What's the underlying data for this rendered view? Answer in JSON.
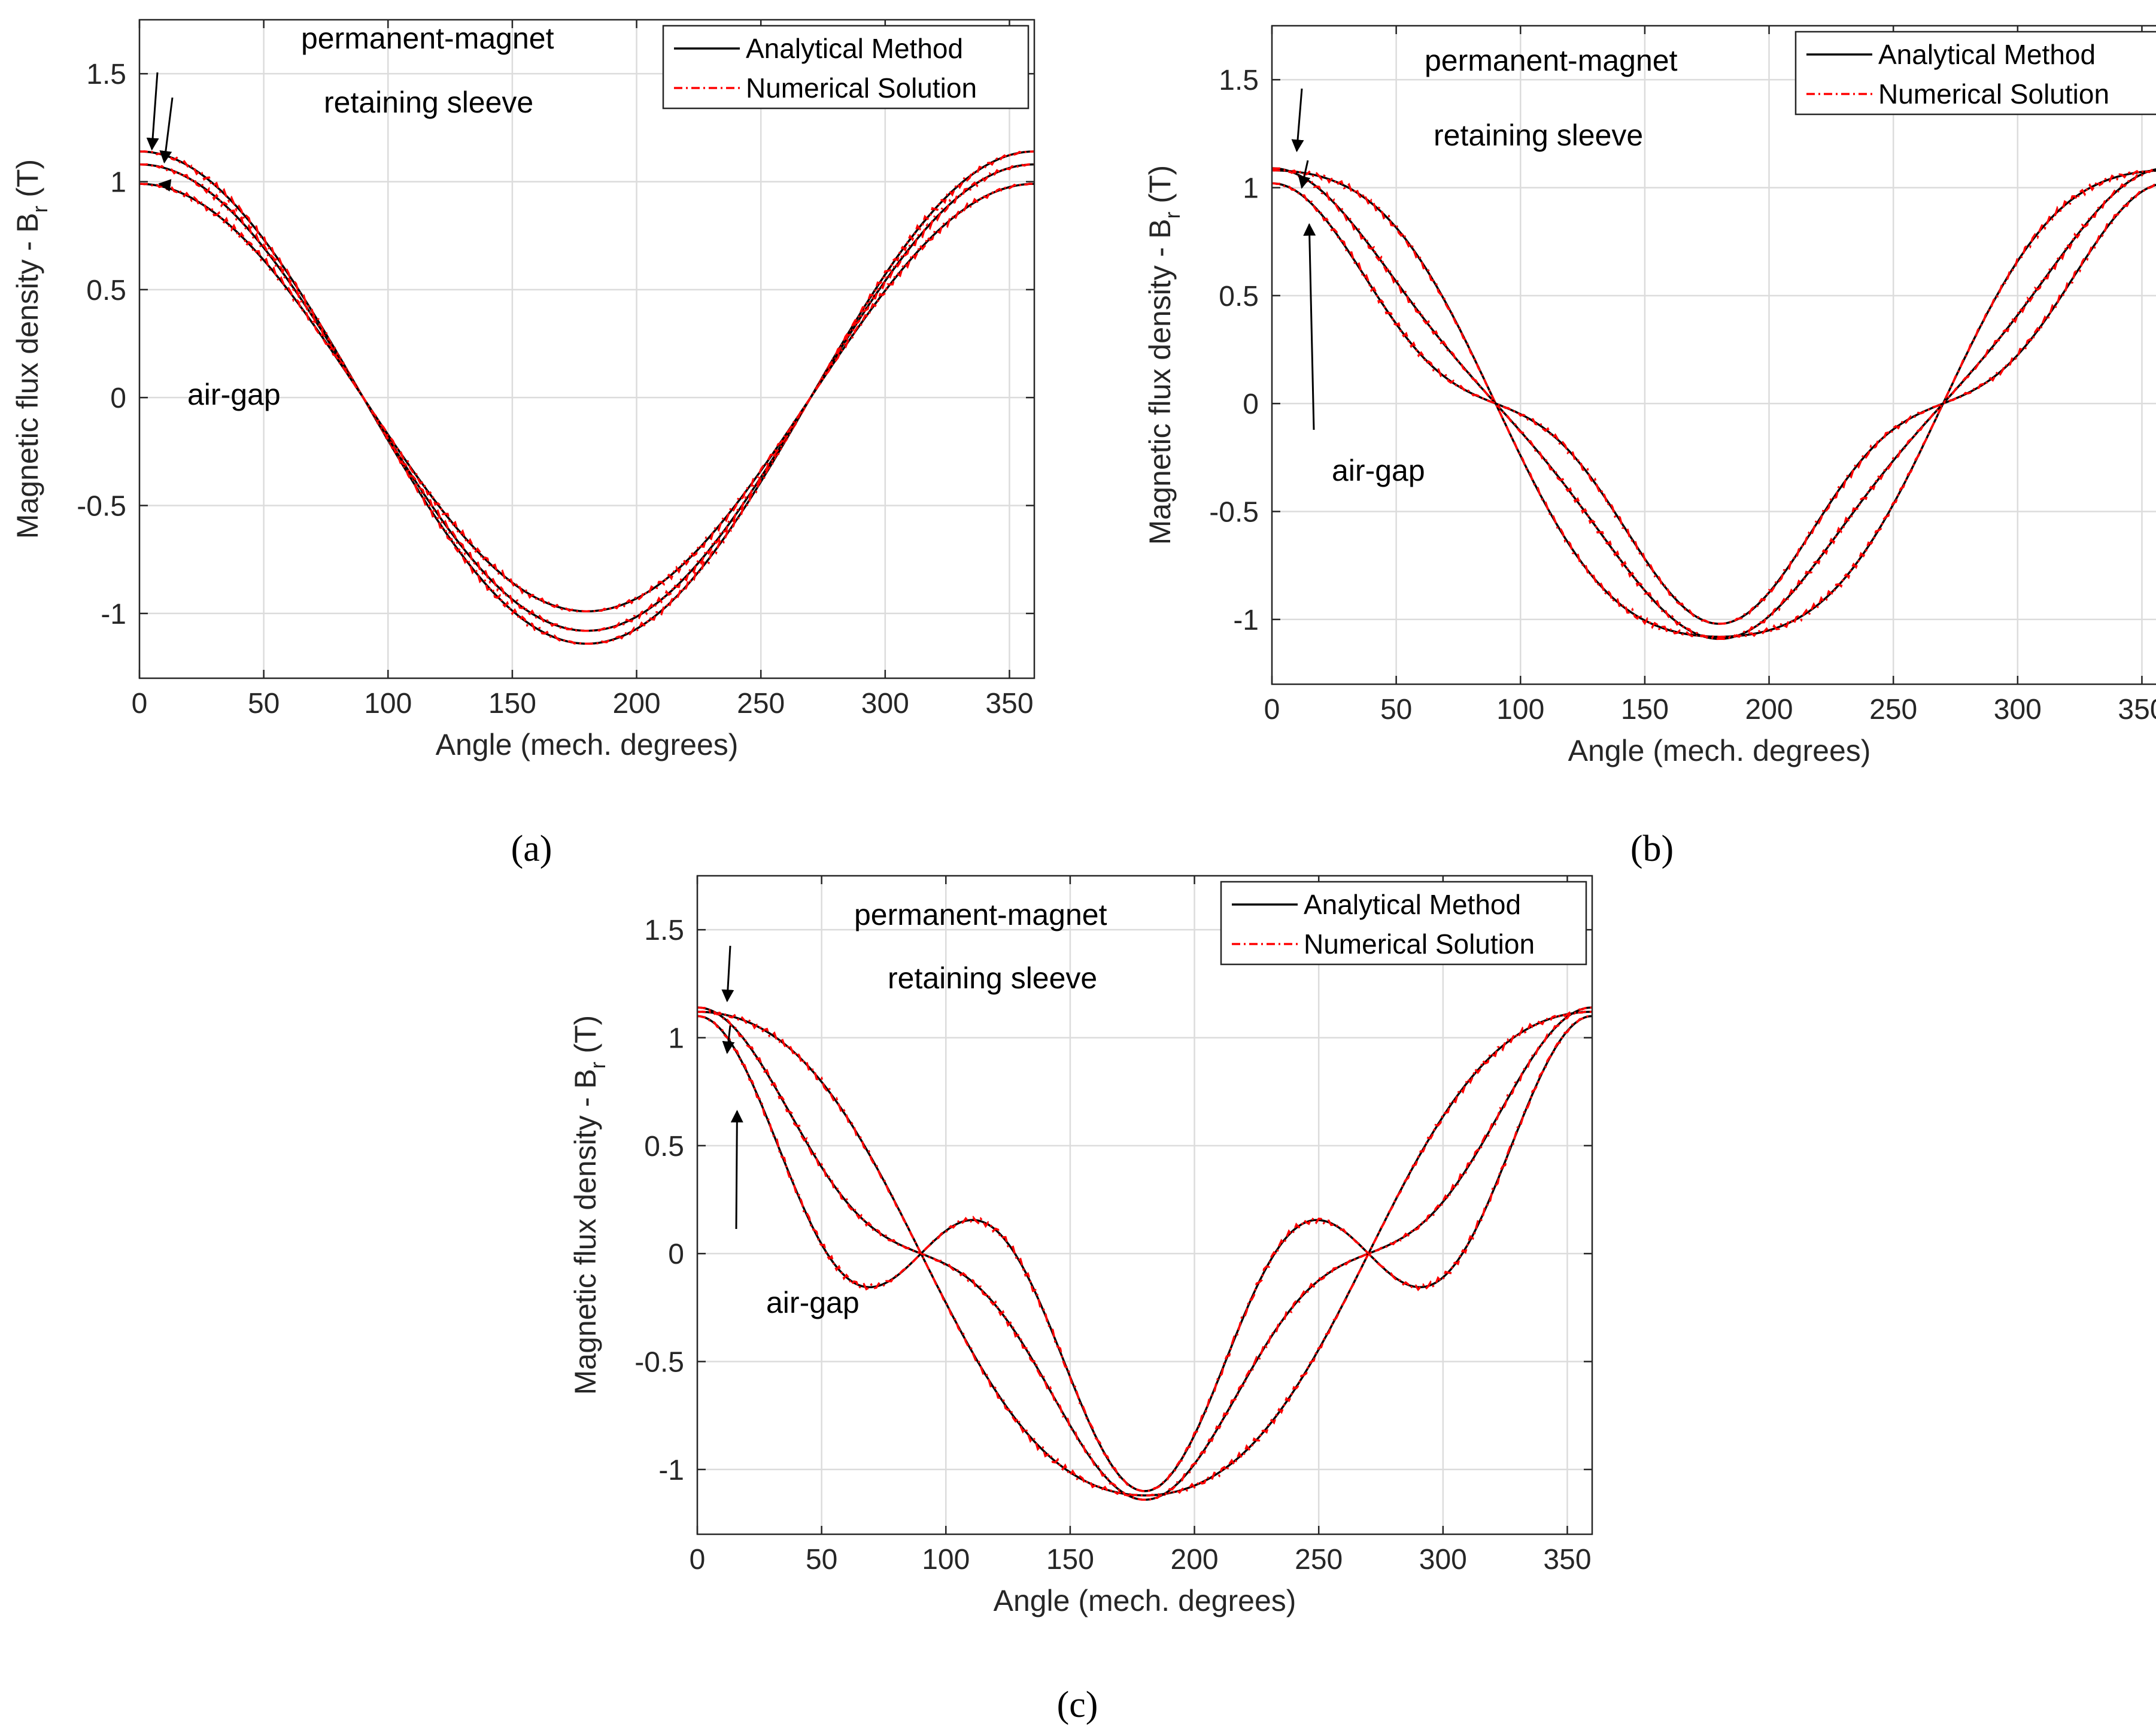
{
  "figure": {
    "captions": [
      "(a)",
      "(b)",
      "(c)"
    ]
  },
  "colors": {
    "analytical": "#000000",
    "numerical": "#ff0000",
    "grid": "#dcdcdc",
    "axis": "#262626"
  },
  "chart_data": [
    {
      "type": "line",
      "panel": "a",
      "xlabel": "Angle (mech. degrees)",
      "ylabel_main": "Magnetic flux density - B",
      "ylabel_sub": "r",
      "ylabel_unit": " (T)",
      "xlim": [
        0,
        360
      ],
      "ylim": [
        -1.3,
        1.75
      ],
      "xticks": [
        0,
        50,
        100,
        150,
        200,
        250,
        300,
        350
      ],
      "yticks": [
        -1,
        -0.5,
        0,
        0.5,
        1,
        1.5
      ],
      "ytick_labels": [
        "-1",
        "-0.5",
        "0",
        "0.5",
        "1",
        "1.5"
      ],
      "grid": true,
      "legend": {
        "position": "top-right",
        "entries": [
          "Analytical Method",
          "Numerical Solution"
        ]
      },
      "annotations": [
        {
          "text": "permanent-magnet",
          "target": [
            5,
            1.15
          ]
        },
        {
          "text": "retaining sleeve",
          "target": [
            10,
            1.09
          ]
        },
        {
          "text": "air-gap",
          "target": [
            8,
            0.99
          ]
        }
      ],
      "series": [
        {
          "name": "permanent-magnet",
          "amplitude": 1.14,
          "harmonic3": 0.0
        },
        {
          "name": "retaining sleeve",
          "amplitude": 1.08,
          "harmonic3": 0.0
        },
        {
          "name": "air-gap",
          "amplitude": 0.99,
          "harmonic3": 0.0
        }
      ]
    },
    {
      "type": "line",
      "panel": "b",
      "xlabel": "Angle (mech. degrees)",
      "ylabel_main": "Magnetic flux density - B",
      "ylabel_sub": "r",
      "ylabel_unit": " (T)",
      "xlim": [
        0,
        360
      ],
      "ylim": [
        -1.3,
        1.75
      ],
      "xticks": [
        0,
        50,
        100,
        150,
        200,
        250,
        300,
        350
      ],
      "yticks": [
        -1,
        -0.5,
        0,
        0.5,
        1,
        1.5
      ],
      "ytick_labels": [
        "-1",
        "-0.5",
        "0",
        "0.5",
        "1",
        "1.5"
      ],
      "grid": true,
      "legend": {
        "position": "top-right",
        "entries": [
          "Analytical Method",
          "Numerical Solution"
        ]
      },
      "annotations": [
        {
          "text": "permanent-magnet",
          "target": [
            10,
            1.17
          ]
        },
        {
          "text": "retaining sleeve",
          "target": [
            12,
            1.0
          ]
        },
        {
          "text": "air-gap",
          "target": [
            15,
            0.83
          ]
        }
      ],
      "series": [
        {
          "name": "permanent-magnet",
          "amplitude": 1.16,
          "harmonic3": -0.08
        },
        {
          "name": "retaining sleeve",
          "amplitude": 1.0,
          "harmonic3": 0.09
        },
        {
          "name": "air-gap",
          "amplitude": 0.83,
          "harmonic3": 0.19
        }
      ]
    },
    {
      "type": "line",
      "panel": "c",
      "xlabel": "Angle (mech. degrees)",
      "ylabel_main": "Magnetic flux density - B",
      "ylabel_sub": "r",
      "ylabel_unit": " (T)",
      "xlim": [
        0,
        360
      ],
      "ylim": [
        -1.3,
        1.75
      ],
      "xticks": [
        0,
        50,
        100,
        150,
        200,
        250,
        300,
        350
      ],
      "yticks": [
        -1,
        -0.5,
        0,
        0.5,
        1,
        1.5
      ],
      "ytick_labels": [
        "-1",
        "-0.5",
        "0",
        "0.5",
        "1",
        "1.5"
      ],
      "grid": true,
      "legend": {
        "position": "top-right",
        "entries": [
          "Analytical Method",
          "Numerical Solution"
        ]
      },
      "annotations": [
        {
          "text": "permanent-magnet",
          "target": [
            12,
            1.17
          ]
        },
        {
          "text": "retaining sleeve",
          "target": [
            12,
            0.93
          ]
        },
        {
          "text": "air-gap",
          "target": [
            16,
            0.66
          ]
        }
      ],
      "series": [
        {
          "name": "permanent-magnet",
          "amplitude": 1.17,
          "harmonic3": -0.05
        },
        {
          "name": "retaining sleeve",
          "amplitude": 0.92,
          "harmonic3": 0.22
        },
        {
          "name": "air-gap",
          "amplitude": 0.66,
          "harmonic3": 0.44
        }
      ]
    }
  ]
}
